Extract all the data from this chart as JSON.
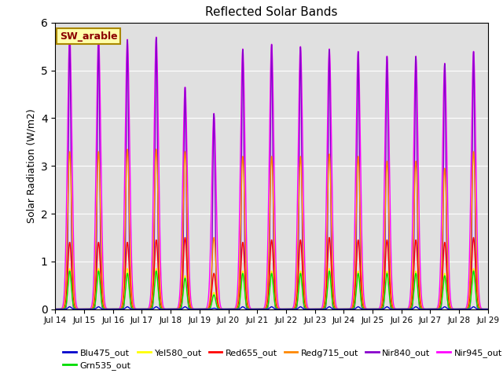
{
  "title": "Reflected Solar Bands",
  "ylabel": "Solar Radiation (W/m2)",
  "xlabel": "",
  "series": {
    "Blu475_out": {
      "color": "#0000cc",
      "lw": 1.0
    },
    "Grn535_out": {
      "color": "#00dd00",
      "lw": 1.0
    },
    "Yel580_out": {
      "color": "#ffff00",
      "lw": 1.0
    },
    "Red655_out": {
      "color": "#ff0000",
      "lw": 1.0
    },
    "Redg715_out": {
      "color": "#ff8800",
      "lw": 1.0
    },
    "Nir840_out": {
      "color": "#8800cc",
      "lw": 1.0
    },
    "Nir945_out": {
      "color": "#ff00ff",
      "lw": 1.0
    }
  },
  "annotation_text": "SW_arable",
  "ylim": [
    0.0,
    6.0
  ],
  "bg_color": "#e0e0e0",
  "xtick_labels": [
    "Jul 14",
    "Jul 15",
    "Jul 16",
    "Jul 17",
    "Jul 18",
    "Jul 19",
    "Jul 20",
    "Jul 21",
    "Jul 22",
    "Jul 23",
    "Jul 24",
    "Jul 25",
    "Jul 26",
    "Jul 27",
    "Jul 28",
    "Jul 29"
  ],
  "peaks_nir840": [
    5.75,
    5.7,
    5.65,
    5.7,
    4.65,
    4.1,
    5.45,
    5.55,
    5.5,
    5.45,
    5.4,
    5.3,
    5.3,
    5.15,
    5.4
  ],
  "peaks_nir945": [
    5.75,
    5.7,
    5.65,
    5.7,
    4.65,
    4.1,
    5.45,
    5.55,
    5.5,
    5.45,
    5.4,
    5.3,
    5.3,
    5.15,
    5.4
  ],
  "peaks_redg715": [
    3.3,
    3.3,
    3.35,
    3.35,
    3.3,
    1.5,
    3.2,
    3.2,
    3.2,
    3.25,
    3.2,
    3.1,
    3.1,
    2.95,
    3.3
  ],
  "peaks_red655": [
    1.4,
    1.4,
    1.4,
    1.45,
    1.5,
    0.75,
    1.4,
    1.45,
    1.45,
    1.5,
    1.45,
    1.45,
    1.45,
    1.4,
    1.5
  ],
  "peaks_yel580": [
    0.85,
    0.85,
    0.85,
    0.85,
    0.7,
    0.35,
    0.8,
    0.8,
    0.8,
    0.85,
    0.8,
    0.8,
    0.8,
    0.75,
    0.85
  ],
  "peaks_grn535": [
    0.8,
    0.8,
    0.75,
    0.8,
    0.65,
    0.3,
    0.75,
    0.75,
    0.75,
    0.8,
    0.75,
    0.75,
    0.75,
    0.7,
    0.8
  ],
  "peaks_blu475": [
    0.05,
    0.05,
    0.05,
    0.05,
    0.05,
    0.02,
    0.05,
    0.05,
    0.05,
    0.05,
    0.05,
    0.05,
    0.05,
    0.05,
    0.05
  ]
}
